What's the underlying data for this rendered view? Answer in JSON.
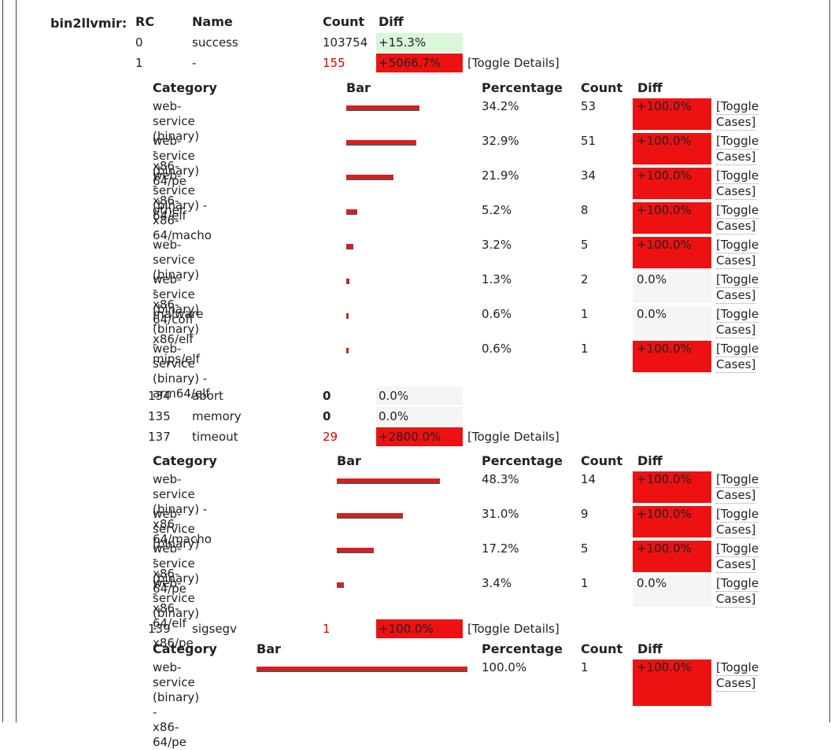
{
  "title": "bin2llvmir:",
  "headers": {
    "rc": "RC",
    "name": "Name",
    "count": "Count",
    "diff": "Diff"
  },
  "sub_headers": {
    "category": "Category",
    "bar": "Bar",
    "percentage": "Percentage",
    "count": "Count",
    "diff": "Diff"
  },
  "toggle_details": "[Toggle Details]",
  "toggle_cases": [
    "[Toggle",
    "Cases]"
  ],
  "rows": [
    {
      "rc": "0",
      "name": "success",
      "count": "103754",
      "diff": "+15.3%"
    },
    {
      "rc": "1",
      "name": "-",
      "count": "155",
      "diff": "+5066.7%"
    },
    {
      "rc": "134",
      "name": "abort",
      "count": "0",
      "diff": "0.0%"
    },
    {
      "rc": "135",
      "name": "memory",
      "count": "0",
      "diff": "0.0%"
    },
    {
      "rc": "137",
      "name": "timeout",
      "count": "29",
      "diff": "+2800.0%"
    },
    {
      "rc": "139",
      "name": "sigsegv",
      "count": "1",
      "diff": "+100.0%"
    }
  ],
  "details": {
    "rc1": [
      {
        "cat": [
          "web-service (binary) -",
          "x86-64/pe"
        ],
        "share": 0.342,
        "pct": "34.2%",
        "count": "53",
        "diff": "+100.0%"
      },
      {
        "cat": [
          "web-service (binary) -",
          "x86-64/elf"
        ],
        "share": 0.329,
        "pct": "32.9%",
        "count": "51",
        "diff": "+100.0%"
      },
      {
        "cat": [
          "web-service (binary) -",
          "x86-64/macho"
        ],
        "share": 0.219,
        "pct": "21.9%",
        "count": "34",
        "diff": "+100.0%"
      },
      {
        "cat": [
          "other"
        ],
        "share": 0.052,
        "pct": "5.2%",
        "count": "8",
        "diff": "+100.0%"
      },
      {
        "cat": [
          "web-service (binary) -",
          "x86-64/coff"
        ],
        "share": 0.032,
        "pct": "3.2%",
        "count": "5",
        "diff": "+100.0%"
      },
      {
        "cat": [
          "web-service (binary) -",
          "x86/elf"
        ],
        "share": 0.013,
        "pct": "1.3%",
        "count": "2",
        "diff": "0.0%"
      },
      {
        "cat": [
          "malware (binary) -",
          "mips/elf"
        ],
        "share": 0.006,
        "pct": "0.6%",
        "count": "1",
        "diff": "0.0%"
      },
      {
        "cat": [
          "web-service (binary) -",
          "arm64/elf"
        ],
        "share": 0.006,
        "pct": "0.6%",
        "count": "1",
        "diff": "+100.0%"
      }
    ],
    "rc137": [
      {
        "cat": [
          "web-service (binary) -",
          "x86-64/macho"
        ],
        "share": 0.483,
        "pct": "48.3%",
        "count": "14",
        "diff": "+100.0%"
      },
      {
        "cat": [
          "web-service (binary) -",
          "x86-64/pe"
        ],
        "share": 0.31,
        "pct": "31.0%",
        "count": "9",
        "diff": "+100.0%"
      },
      {
        "cat": [
          "web-service (binary) -",
          "x86-64/elf"
        ],
        "share": 0.172,
        "pct": "17.2%",
        "count": "5",
        "diff": "+100.0%"
      },
      {
        "cat": [
          "web-service (binary) -",
          "x86/pe"
        ],
        "share": 0.034,
        "pct": "3.4%",
        "count": "1",
        "diff": "0.0%"
      }
    ],
    "rc139": [
      {
        "cat": [
          "web-service",
          "(binary) -",
          "x86-64/pe"
        ],
        "share": 1.0,
        "pct": "100.0%",
        "count": "1",
        "diff": "+100.0%"
      }
    ]
  },
  "colors": {
    "red": "#ee1111",
    "green": "#d9f7d9",
    "grey": "#f5f5f5"
  }
}
